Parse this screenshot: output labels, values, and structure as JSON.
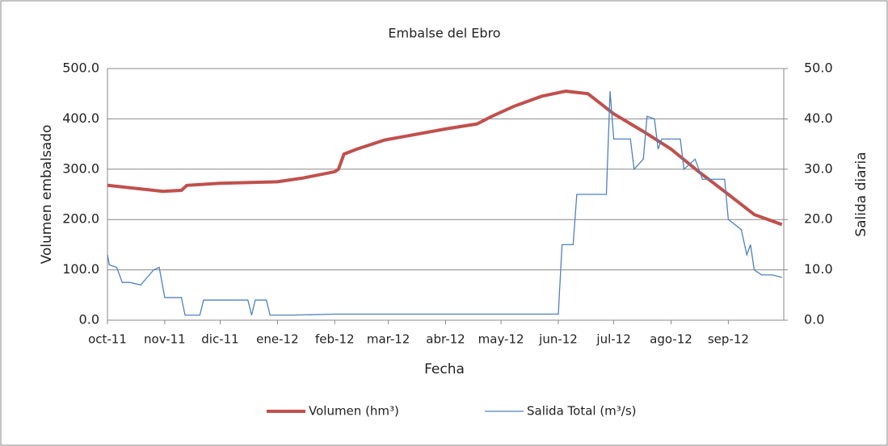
{
  "chart_data": {
    "type": "line",
    "title": "Embalse del Ebro",
    "x_label": "Fecha",
    "y_label": "Volumen embalsado",
    "y2_label": "Salida diaria",
    "xlim": [
      0,
      366
    ],
    "xticks": [
      {
        "value": 0,
        "label": "oct-11"
      },
      {
        "value": 31,
        "label": "nov-11"
      },
      {
        "value": 61,
        "label": "dic-11"
      },
      {
        "value": 92,
        "label": "ene-12"
      },
      {
        "value": 123,
        "label": "feb-12"
      },
      {
        "value": 152,
        "label": "mar-12"
      },
      {
        "value": 183,
        "label": "abr-12"
      },
      {
        "value": 213,
        "label": "may-12"
      },
      {
        "value": 244,
        "label": "jun-12"
      },
      {
        "value": 274,
        "label": "jul-12"
      },
      {
        "value": 305,
        "label": "ago-12"
      },
      {
        "value": 336,
        "label": "sep-12"
      }
    ],
    "ylim": [
      0,
      500
    ],
    "yticks": [
      {
        "value": 0,
        "label": "0.0"
      },
      {
        "value": 100,
        "label": "100.0"
      },
      {
        "value": 200,
        "label": "200.0"
      },
      {
        "value": 300,
        "label": "300.0"
      },
      {
        "value": 400,
        "label": "400.0"
      },
      {
        "value": 500,
        "label": "500.0"
      }
    ],
    "y2lim": [
      0,
      50
    ],
    "y2ticks": [
      {
        "value": 0,
        "label": "0.0"
      },
      {
        "value": 10,
        "label": "10.0"
      },
      {
        "value": 20,
        "label": "20.0"
      },
      {
        "value": 30,
        "label": "30.0"
      },
      {
        "value": 40,
        "label": "40.0"
      },
      {
        "value": 50,
        "label": "50.0"
      }
    ],
    "grid": true,
    "legend": "bottom",
    "series": [
      {
        "name": "Volumen (hm³)",
        "color": "#c0504d",
        "x": [
          0,
          15,
          30,
          40,
          43,
          61,
          92,
          105,
          123,
          125,
          128,
          135,
          150,
          183,
          200,
          208,
          220,
          235,
          248,
          260,
          274,
          290,
          305,
          320,
          336,
          350,
          365
        ],
        "values": [
          268,
          262,
          256,
          258,
          268,
          272,
          275,
          282,
          295,
          300,
          330,
          340,
          358,
          380,
          390,
          405,
          425,
          445,
          455,
          450,
          410,
          375,
          340,
          295,
          250,
          210,
          190
        ]
      },
      {
        "name": "Salida Total (m³/s)",
        "color": "#4f81bd",
        "axis": "y2",
        "x": [
          0,
          1,
          5,
          8,
          12,
          18,
          25,
          28,
          31,
          36,
          40,
          42,
          50,
          52,
          76,
          78,
          80,
          86,
          88,
          100,
          123,
          244,
          246,
          252,
          254,
          270,
          272,
          274,
          283,
          285,
          290,
          292,
          296,
          298,
          300,
          310,
          312,
          318,
          322,
          326,
          334,
          336,
          343,
          346,
          348,
          350,
          354,
          360,
          365
        ],
        "values": [
          13,
          11,
          10.5,
          7.5,
          7.5,
          7,
          10,
          10.5,
          4.5,
          4.5,
          4.5,
          1,
          1,
          4,
          4,
          1,
          4,
          4,
          1,
          1,
          1.2,
          1.2,
          15,
          15,
          25,
          25,
          45.5,
          36,
          36,
          30,
          32,
          40.5,
          40,
          34,
          36,
          36,
          30,
          32,
          28,
          28,
          28,
          20,
          18,
          13,
          15,
          10,
          9,
          9,
          8.5
        ]
      }
    ]
  }
}
